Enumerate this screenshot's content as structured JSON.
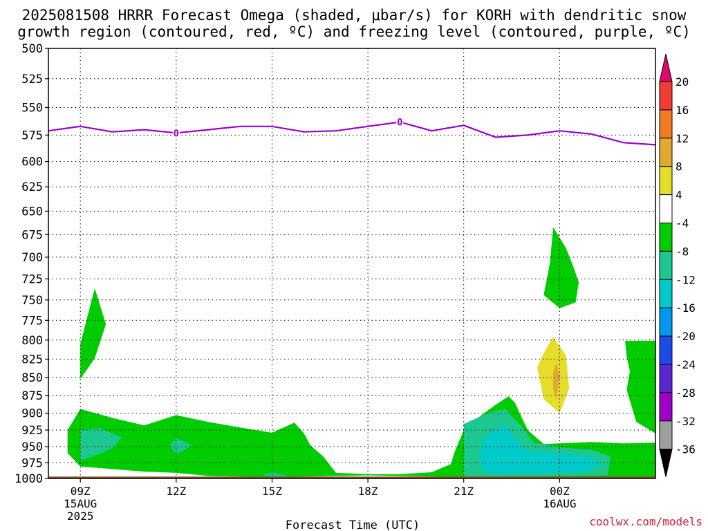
{
  "chart_data": {
    "type": "contour",
    "title": {
      "line1": "2025081508 HRRR Forecast Omega (shaded, μbar/s) for KORH with dendritic snow",
      "line2": "growth region (contoured, red, ºC) and freezing level (contoured, purple, ºC)"
    },
    "xlabel": "Forecast Time (UTC)",
    "credit": "coolwx.com/models",
    "x_ticks": [
      {
        "hour": 9,
        "label": "09Z",
        "sub": [
          "15AUG",
          "2025"
        ]
      },
      {
        "hour": 12,
        "label": "12Z",
        "sub": []
      },
      {
        "hour": 15,
        "label": "15Z",
        "sub": []
      },
      {
        "hour": 18,
        "label": "18Z",
        "sub": []
      },
      {
        "hour": 21,
        "label": "21Z",
        "sub": []
      },
      {
        "hour": 24,
        "label": "00Z",
        "sub": [
          "16AUG"
        ]
      }
    ],
    "xlim_hours": [
      8.0,
      27.0
    ],
    "y_ticks": [
      500,
      525,
      550,
      575,
      600,
      625,
      650,
      675,
      700,
      725,
      750,
      775,
      800,
      825,
      850,
      875,
      900,
      925,
      950,
      975,
      1000
    ],
    "ylim_hpa": [
      500,
      1000
    ],
    "y_scale": "log-pressure",
    "grid": true,
    "freezing_level": {
      "color": "#9a00cc",
      "labels": [
        {
          "hour": 12.0,
          "value": "0"
        },
        {
          "hour": 19.0,
          "value": "0"
        }
      ],
      "points": [
        [
          8.0,
          571
        ],
        [
          9.0,
          567
        ],
        [
          10.0,
          572
        ],
        [
          11.0,
          570
        ],
        [
          12.0,
          573
        ],
        [
          13.0,
          570
        ],
        [
          14.0,
          567
        ],
        [
          15.0,
          567
        ],
        [
          16.0,
          572
        ],
        [
          17.0,
          571
        ],
        [
          18.0,
          567
        ],
        [
          19.0,
          563
        ],
        [
          20.0,
          571
        ],
        [
          21.0,
          566
        ],
        [
          22.0,
          577
        ],
        [
          23.0,
          575
        ],
        [
          24.0,
          571
        ],
        [
          25.0,
          574
        ],
        [
          26.0,
          582
        ],
        [
          27.0,
          584
        ]
      ]
    },
    "shaded_regions": [
      {
        "level": "-4 to -8",
        "color": "#00cc00",
        "points": [
          [
            8.6,
            925
          ],
          [
            9.0,
            894
          ],
          [
            10.0,
            907
          ],
          [
            11.0,
            918
          ],
          [
            12.0,
            903
          ],
          [
            13.0,
            913
          ],
          [
            14.0,
            921
          ],
          [
            15.0,
            929
          ],
          [
            15.7,
            914
          ],
          [
            16.0,
            930
          ],
          [
            16.2,
            948
          ],
          [
            16.6,
            965
          ],
          [
            17.0,
            991
          ],
          [
            18.0,
            993
          ],
          [
            19.0,
            993
          ],
          [
            20.0,
            990
          ],
          [
            20.6,
            977
          ],
          [
            20.7,
            960
          ],
          [
            21.0,
            925
          ],
          [
            21.5,
            905
          ],
          [
            22.0,
            888
          ],
          [
            22.4,
            876
          ],
          [
            22.6,
            885
          ],
          [
            23.0,
            925
          ],
          [
            23.5,
            946
          ],
          [
            24.0,
            945
          ],
          [
            25.0,
            943
          ],
          [
            26.0,
            945
          ],
          [
            27.0,
            944
          ],
          [
            27.0,
            998
          ],
          [
            26.0,
            998
          ],
          [
            24.0,
            998
          ],
          [
            22.0,
            998
          ],
          [
            21.0,
            998
          ],
          [
            20.0,
            997
          ],
          [
            19.0,
            996
          ],
          [
            18.0,
            995
          ],
          [
            17.0,
            996
          ],
          [
            16.0,
            997
          ],
          [
            15.0,
            998
          ],
          [
            14.0,
            997
          ],
          [
            13.0,
            996
          ],
          [
            12.0,
            991
          ],
          [
            11.0,
            989
          ],
          [
            10.0,
            985
          ],
          [
            9.0,
            981
          ],
          [
            8.6,
            960
          ]
        ]
      },
      {
        "level": "-4 to -8",
        "color": "#00cc00",
        "points": [
          [
            9.0,
            805
          ],
          [
            9.45,
            736
          ],
          [
            9.8,
            780
          ],
          [
            9.45,
            824
          ],
          [
            9.0,
            852
          ]
        ]
      },
      {
        "level": "-4 to -8",
        "color": "#00cc00",
        "points": [
          [
            23.7,
            706
          ],
          [
            23.8,
            667
          ],
          [
            24.2,
            690
          ],
          [
            24.4,
            708
          ],
          [
            24.6,
            729
          ],
          [
            24.5,
            753
          ],
          [
            24.0,
            760
          ],
          [
            23.5,
            744
          ],
          [
            23.6,
            725
          ]
        ]
      },
      {
        "level": "-4 to -8",
        "color": "#00cc00",
        "points": [
          [
            26.05,
            801
          ],
          [
            27.0,
            801
          ],
          [
            27.0,
            930
          ],
          [
            26.4,
            913
          ],
          [
            26.1,
            867
          ],
          [
            26.2,
            841
          ],
          [
            26.1,
            822
          ]
        ]
      },
      {
        "level": "-8 to -12",
        "color": "#1cc890",
        "points": [
          [
            9.0,
            925
          ],
          [
            9.6,
            922
          ],
          [
            10.3,
            936
          ],
          [
            10.0,
            953
          ],
          [
            9.6,
            961
          ],
          [
            9.0,
            972
          ]
        ]
      },
      {
        "level": "-8 to -12",
        "color": "#1cc890",
        "points": [
          [
            11.8,
            948
          ],
          [
            12.0,
            937
          ],
          [
            12.5,
            948
          ],
          [
            12.0,
            962
          ]
        ]
      },
      {
        "level": "-8 to -12",
        "color": "#1cc890",
        "points": [
          [
            14.7,
            995
          ],
          [
            15.0,
            990
          ],
          [
            15.5,
            996
          ],
          [
            15.2,
            998
          ]
        ]
      },
      {
        "level": "-8 to -12",
        "color": "#1cc890",
        "points": [
          [
            21.0,
            916
          ],
          [
            21.8,
            899
          ],
          [
            22.3,
            894
          ],
          [
            22.8,
            919
          ],
          [
            23.2,
            944
          ],
          [
            24.0,
            951
          ],
          [
            25.0,
            955
          ],
          [
            25.6,
            965
          ],
          [
            25.5,
            995
          ],
          [
            24.0,
            996
          ],
          [
            22.0,
            997
          ],
          [
            21.0,
            997
          ],
          [
            21.0,
            970
          ]
        ]
      },
      {
        "level": "-12 to -16",
        "color": "#00cbcb",
        "points": [
          [
            21.6,
            938
          ],
          [
            22.0,
            925
          ],
          [
            22.3,
            917
          ],
          [
            22.6,
            937
          ],
          [
            23.0,
            956
          ],
          [
            24.0,
            961
          ],
          [
            25.0,
            966
          ],
          [
            25.3,
            978
          ],
          [
            24.8,
            990
          ],
          [
            23.0,
            993
          ],
          [
            22.0,
            993
          ],
          [
            21.6,
            988
          ],
          [
            21.5,
            964
          ]
        ]
      },
      {
        "level": "4 to 8",
        "color": "#e5dd2a",
        "points": [
          [
            23.5,
            817
          ],
          [
            23.8,
            796
          ],
          [
            24.2,
            820
          ],
          [
            24.3,
            865
          ],
          [
            24.0,
            900
          ],
          [
            23.5,
            880
          ],
          [
            23.3,
            836
          ]
        ]
      },
      {
        "level": "8 to 12",
        "color": "#e1a832",
        "points": [
          [
            23.8,
            843
          ],
          [
            23.9,
            830
          ],
          [
            24.0,
            849
          ],
          [
            23.9,
            881
          ],
          [
            23.8,
            866
          ]
        ]
      }
    ],
    "ground_color": "#8b4a27",
    "colorbar": {
      "levels": [
        {
          "label": "20",
          "color": "#dc0a6e"
        },
        {
          "label": "16",
          "color": "#f03c35"
        },
        {
          "label": "12",
          "color": "#ef7a22"
        },
        {
          "label": "8",
          "color": "#e1a832"
        },
        {
          "label": "4",
          "color": "#e5dd2a"
        },
        {
          "label": "-4",
          "color": "#ffffff"
        },
        {
          "label": "-8",
          "color": "#00cc00"
        },
        {
          "label": "-12",
          "color": "#1cc890"
        },
        {
          "label": "-16",
          "color": "#00cbcb"
        },
        {
          "label": "-20",
          "color": "#0098ee"
        },
        {
          "label": "-24",
          "color": "#1b4cea"
        },
        {
          "label": "-28",
          "color": "#5a26cf"
        },
        {
          "label": "-32",
          "color": "#a000c8"
        },
        {
          "label": "-36",
          "color": "#9e9e9e"
        }
      ],
      "top_arrow_color": "#dc0a6e",
      "bottom_arrow_color": "#000000"
    }
  }
}
